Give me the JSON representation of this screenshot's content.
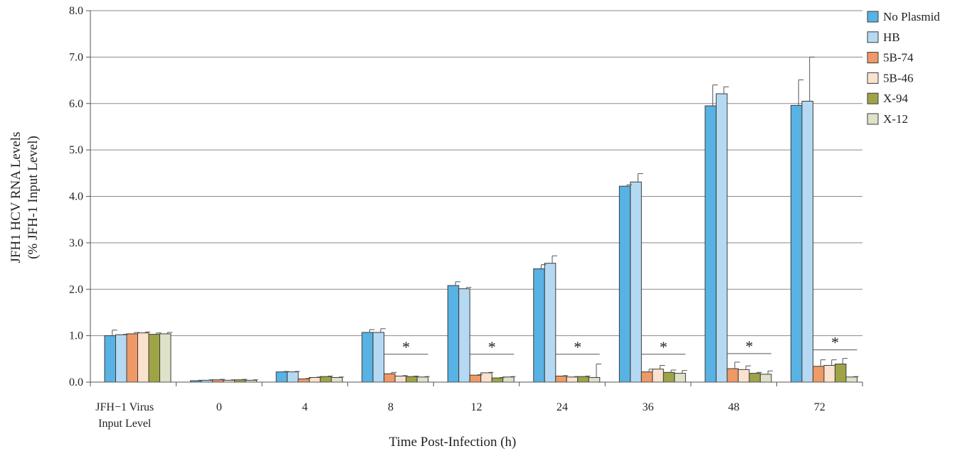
{
  "chart_data": {
    "type": "bar",
    "ylabel_line1": "JFH1 HCV RNA Levels",
    "ylabel_line2": "(% JFH-1 Input Level)",
    "xlabel": "Time Post-Infection (h)",
    "ylim": [
      0,
      8
    ],
    "yticks": [
      "0.0",
      "1.0",
      "2.0",
      "3.0",
      "4.0",
      "5.0",
      "6.0",
      "7.0",
      "8.0"
    ],
    "grid": true,
    "legend_position": "right",
    "categories": [
      [
        "JFH−1 Virus",
        "Input Level"
      ],
      [
        "0"
      ],
      [
        "4"
      ],
      [
        "8"
      ],
      [
        "12"
      ],
      [
        "24"
      ],
      [
        "36"
      ],
      [
        "48"
      ],
      [
        "72"
      ]
    ],
    "series": [
      {
        "name": "No Plasmid",
        "color": "#58b2e3",
        "values": [
          1.0,
          0.03,
          0.22,
          1.07,
          2.08,
          2.44,
          4.22,
          5.95,
          5.96
        ],
        "errors": [
          0.12,
          0.01,
          0.01,
          0.06,
          0.08,
          0.09,
          0.03,
          0.45,
          0.55
        ]
      },
      {
        "name": "HB",
        "color": "#b5d9f2",
        "values": [
          1.02,
          0.04,
          0.22,
          1.07,
          2.01,
          2.56,
          4.31,
          6.21,
          6.05
        ],
        "errors": [
          0.01,
          0.01,
          0.01,
          0.08,
          0.03,
          0.16,
          0.18,
          0.15,
          0.95
        ]
      },
      {
        "name": "5B-74",
        "color": "#ef9966",
        "values": [
          1.04,
          0.05,
          0.07,
          0.18,
          0.15,
          0.13,
          0.22,
          0.29,
          0.34
        ],
        "errors": [
          0.03,
          0.01,
          0.01,
          0.03,
          0.01,
          0.01,
          0.06,
          0.14,
          0.14
        ]
      },
      {
        "name": "5B-46",
        "color": "#fbe2cf",
        "values": [
          1.06,
          0.04,
          0.1,
          0.13,
          0.2,
          0.11,
          0.28,
          0.27,
          0.36
        ],
        "errors": [
          0.02,
          0.01,
          0.01,
          0.01,
          0.01,
          0.01,
          0.08,
          0.08,
          0.12
        ]
      },
      {
        "name": "X-94",
        "color": "#9ea446",
        "values": [
          1.03,
          0.05,
          0.12,
          0.12,
          0.09,
          0.12,
          0.21,
          0.19,
          0.39
        ],
        "errors": [
          0.03,
          0.01,
          0.01,
          0.01,
          0.01,
          0.01,
          0.05,
          0.02,
          0.12
        ]
      },
      {
        "name": "X-12",
        "color": "#dfe1c8",
        "values": [
          1.04,
          0.04,
          0.1,
          0.11,
          0.11,
          0.1,
          0.19,
          0.17,
          0.11
        ],
        "errors": [
          0.03,
          0.01,
          0.01,
          0.01,
          0.01,
          0.29,
          0.06,
          0.07,
          0.01
        ]
      }
    ],
    "significance_marker": "*",
    "significance_categories": [
      "8",
      "12",
      "24",
      "36",
      "48",
      "72"
    ]
  }
}
